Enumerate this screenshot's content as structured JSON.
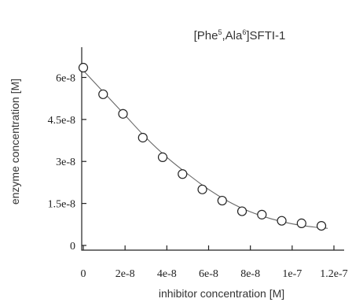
{
  "chart_data": {
    "type": "scatter",
    "title": {
      "prefix": "[Phe",
      "sup1": "5",
      "middle": ",Ala",
      "sup2": "6",
      "suffix": "]SFTI-1"
    },
    "xlabel": "inhibitor concentration [M]",
    "ylabel": "enzyme concentration [M]",
    "xlim": [
      0,
      1.2e-07
    ],
    "ylim": [
      0,
      6.8e-08
    ],
    "x_ticks": [
      {
        "value": 0,
        "label": "0"
      },
      {
        "value": 2e-08,
        "label": "2e-8"
      },
      {
        "value": 4e-08,
        "label": "4e-8"
      },
      {
        "value": 6e-08,
        "label": "6e-8"
      },
      {
        "value": 8e-08,
        "label": "8e-8"
      },
      {
        "value": 1e-07,
        "label": "1e-7"
      },
      {
        "value": 1.2e-07,
        "label": "1.2e-7"
      }
    ],
    "y_ticks": [
      {
        "value": 0,
        "label": "0"
      },
      {
        "value": 1.5e-08,
        "label": "1.5e-8"
      },
      {
        "value": 3e-08,
        "label": "3e-8"
      },
      {
        "value": 4.5e-08,
        "label": "4.5e-8"
      },
      {
        "value": 6e-08,
        "label": "6e-8"
      }
    ],
    "grid": false,
    "legend": false,
    "series": [
      {
        "kind": "points",
        "marker": "open-circle",
        "x": [
          0,
          9.5e-09,
          1.9e-08,
          2.85e-08,
          3.8e-08,
          4.75e-08,
          5.7e-08,
          6.65e-08,
          7.6e-08,
          8.55e-08,
          9.5e-08,
          1.045e-07,
          1.14e-07
        ],
        "y": [
          6.35e-08,
          5.4e-08,
          4.7e-08,
          3.85e-08,
          3.15e-08,
          2.55e-08,
          2e-08,
          1.6e-08,
          1.22e-08,
          1.1e-08,
          8.8e-09,
          7.9e-09,
          7e-09
        ]
      },
      {
        "kind": "fit-curve",
        "x": [
          0,
          1e-08,
          2e-08,
          3e-08,
          4e-08,
          5e-08,
          6e-08,
          7e-08,
          8e-08,
          9e-08,
          1e-07,
          1.1e-07,
          1.17e-07
        ],
        "y": [
          6.25e-08,
          5.45e-08,
          4.65e-08,
          3.85e-08,
          3.15e-08,
          2.55e-08,
          2e-08,
          1.55e-08,
          1.2e-08,
          9.5e-09,
          7.7e-09,
          6.6e-09,
          6.1e-09
        ]
      }
    ]
  }
}
